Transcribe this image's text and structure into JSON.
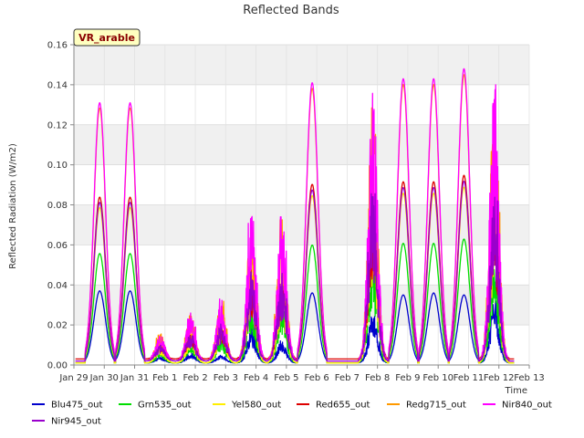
{
  "chart_data": {
    "type": "line",
    "title": "Reflected Bands",
    "xlabel": "Time",
    "ylabel": "Reflected Radiation (W/m2)",
    "badge": "VR_arable",
    "xlim": [
      0,
      15
    ],
    "ylim": [
      0,
      0.16
    ],
    "yticks": [
      0.0,
      0.02,
      0.04,
      0.06,
      0.08,
      0.1,
      0.12,
      0.14,
      0.16
    ],
    "ytick_labels": [
      "0.00",
      "0.02",
      "0.04",
      "0.06",
      "0.08",
      "0.10",
      "0.12",
      "0.14",
      "0.16"
    ],
    "xticks": [
      0,
      1,
      2,
      3,
      4,
      5,
      6,
      7,
      8,
      9,
      10,
      11,
      12,
      13,
      14,
      15
    ],
    "xtick_labels": [
      "Jan 29",
      "Jan 30",
      "Jan 31",
      "Feb 1",
      "Feb 2",
      "Feb 3",
      "Feb 4",
      "Feb 5",
      "Feb 6",
      "Feb 7",
      "Feb 8",
      "Feb 9",
      "Feb 10",
      "Feb 11",
      "Feb 12",
      "Feb 13"
    ],
    "grid": true,
    "legend_position": "bottom",
    "day_center_offset": 0.85,
    "day_peaks": [
      {
        "day": 1,
        "nir840": 0.131,
        "blu475": 0.037,
        "shape": "smooth"
      },
      {
        "day": 2,
        "nir840": 0.131,
        "blu475": 0.037,
        "shape": "smooth"
      },
      {
        "day": 3,
        "nir840": 0.016,
        "blu475": 0.004,
        "shape": "noisy"
      },
      {
        "day": 4,
        "nir840": 0.026,
        "blu475": 0.006,
        "shape": "noisy"
      },
      {
        "day": 5,
        "nir840": 0.033,
        "blu475": 0.005,
        "shape": "noisy"
      },
      {
        "day": 6,
        "nir840": 0.075,
        "blu475": 0.018,
        "shape": "noisy"
      },
      {
        "day": 7,
        "nir840": 0.074,
        "blu475": 0.012,
        "shape": "noisy"
      },
      {
        "day": 8,
        "nir840": 0.141,
        "blu475": 0.036,
        "shape": "smooth"
      },
      {
        "day": 10,
        "nir840": 0.138,
        "blu475": 0.026,
        "shape": "noisy"
      },
      {
        "day": 11,
        "nir840": 0.143,
        "blu475": 0.035,
        "shape": "smooth"
      },
      {
        "day": 12,
        "nir840": 0.143,
        "blu475": 0.036,
        "shape": "smooth"
      },
      {
        "day": 13,
        "nir840": 0.148,
        "blu475": 0.035,
        "shape": "smooth"
      },
      {
        "day": 14,
        "nir840": 0.14,
        "blu475": 0.032,
        "shape": "noisy"
      }
    ],
    "series": [
      {
        "name": "Blu475_out",
        "color": "#0000cc",
        "ratio": 0.265,
        "baseline": 0.001
      },
      {
        "name": "Grn535_out",
        "color": "#00dd00",
        "ratio": 0.425,
        "baseline": 0.001
      },
      {
        "name": "Yel580_out",
        "color": "#ffee00",
        "ratio": 0.6,
        "baseline": 0.001
      },
      {
        "name": "Red655_out",
        "color": "#dd0000",
        "ratio": 0.64,
        "baseline": 0.003
      },
      {
        "name": "Redg715_out",
        "color": "#ff9900",
        "ratio": 0.98,
        "baseline": 0.002
      },
      {
        "name": "Nir840_out",
        "color": "#ff00ff",
        "ratio": 1.0,
        "baseline": 0.002
      },
      {
        "name": "Nir945_out",
        "color": "#9900cc",
        "ratio": 0.62,
        "baseline": 0.002
      }
    ]
  }
}
